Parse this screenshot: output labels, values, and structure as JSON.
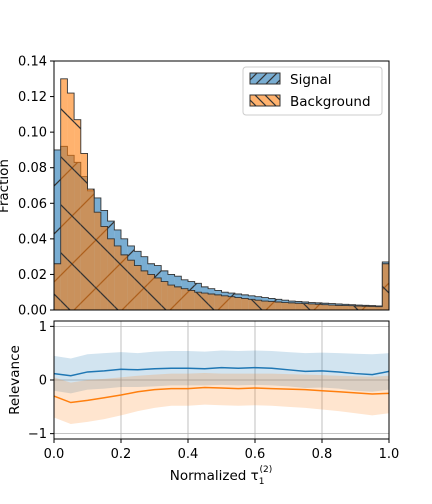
{
  "chart_data": [
    {
      "type": "histogram",
      "ylabel": "Fraction",
      "ylim": [
        0,
        0.14
      ],
      "xlim": [
        0,
        1
      ],
      "yticks": [
        0.0,
        0.02,
        0.04,
        0.06,
        0.08,
        0.1,
        0.12,
        0.14
      ],
      "ytick_labels": [
        "0.00",
        "0.02",
        "0.04",
        "0.06",
        "0.08",
        "0.10",
        "0.12",
        "0.14"
      ],
      "legend_position": "top-right",
      "bins": 50,
      "series": [
        {
          "name": "Signal",
          "color": "#1f77b4",
          "hatch": "forward-slash",
          "values": [
            0.09,
            0.092,
            0.087,
            0.083,
            0.075,
            0.067,
            0.063,
            0.056,
            0.05,
            0.045,
            0.04,
            0.036,
            0.033,
            0.03,
            0.026,
            0.025,
            0.022,
            0.02,
            0.019,
            0.017,
            0.016,
            0.015,
            0.013,
            0.012,
            0.011,
            0.01,
            0.0095,
            0.009,
            0.0085,
            0.008,
            0.0075,
            0.007,
            0.0065,
            0.006,
            0.0055,
            0.005,
            0.0048,
            0.0045,
            0.0042,
            0.004,
            0.0038,
            0.0036,
            0.0034,
            0.0032,
            0.003,
            0.0028,
            0.0026,
            0.0025,
            0.0023,
            0.027
          ]
        },
        {
          "name": "Background",
          "color": "#ff7f0e",
          "hatch": "back-slash",
          "values": [
            0.026,
            0.13,
            0.122,
            0.107,
            0.088,
            0.068,
            0.055,
            0.047,
            0.04,
            0.036,
            0.031,
            0.028,
            0.025,
            0.022,
            0.02,
            0.018,
            0.016,
            0.014,
            0.013,
            0.012,
            0.011,
            0.01,
            0.0095,
            0.009,
            0.0085,
            0.008,
            0.0075,
            0.007,
            0.0065,
            0.006,
            0.0055,
            0.005,
            0.0048,
            0.0045,
            0.0042,
            0.004,
            0.0038,
            0.0036,
            0.0034,
            0.0032,
            0.003,
            0.0028,
            0.0026,
            0.0025,
            0.0024,
            0.0022,
            0.0021,
            0.002,
            0.0019,
            0.026
          ]
        }
      ]
    },
    {
      "type": "line",
      "xlabel": "Normalized τ",
      "xlabel_sub": "1",
      "xlabel_sup": "(2)",
      "ylabel": "Relevance",
      "xlim": [
        0,
        1
      ],
      "ylim": [
        -1.1,
        1.1
      ],
      "xticks": [
        0.0,
        0.2,
        0.4,
        0.6,
        0.8,
        1.0
      ],
      "xtick_labels": [
        "0.0",
        "0.2",
        "0.4",
        "0.6",
        "0.8",
        "1.0"
      ],
      "yticks": [
        -1,
        0,
        1
      ],
      "ytick_labels": [
        "−1",
        "0",
        "1"
      ],
      "grid": true,
      "x": [
        0.0,
        0.05,
        0.1,
        0.15,
        0.2,
        0.25,
        0.3,
        0.35,
        0.4,
        0.45,
        0.5,
        0.55,
        0.6,
        0.65,
        0.7,
        0.75,
        0.8,
        0.85,
        0.9,
        0.95,
        1.0
      ],
      "series": [
        {
          "color": "#1f77b4",
          "mean": [
            0.12,
            0.08,
            0.15,
            0.17,
            0.2,
            0.19,
            0.21,
            0.22,
            0.22,
            0.21,
            0.23,
            0.22,
            0.23,
            0.22,
            0.19,
            0.16,
            0.17,
            0.15,
            0.12,
            0.1,
            0.16
          ],
          "upper": [
            0.45,
            0.4,
            0.48,
            0.5,
            0.52,
            0.5,
            0.53,
            0.54,
            0.54,
            0.53,
            0.55,
            0.54,
            0.55,
            0.54,
            0.52,
            0.5,
            0.51,
            0.5,
            0.49,
            0.48,
            0.5
          ],
          "lower": [
            -0.2,
            -0.25,
            -0.18,
            -0.16,
            -0.13,
            -0.13,
            -0.12,
            -0.1,
            -0.1,
            -0.1,
            -0.09,
            -0.1,
            -0.09,
            -0.1,
            -0.12,
            -0.15,
            -0.14,
            -0.16,
            -0.2,
            -0.22,
            -0.18
          ]
        },
        {
          "color": "#ff7f0e",
          "mean": [
            -0.3,
            -0.42,
            -0.38,
            -0.33,
            -0.28,
            -0.22,
            -0.18,
            -0.16,
            -0.16,
            -0.14,
            -0.15,
            -0.16,
            -0.15,
            -0.16,
            -0.17,
            -0.18,
            -0.2,
            -0.22,
            -0.24,
            -0.26,
            -0.25
          ],
          "upper": [
            0.05,
            -0.05,
            0.0,
            0.02,
            0.05,
            0.08,
            0.1,
            0.12,
            0.12,
            0.13,
            0.12,
            0.12,
            0.12,
            0.12,
            0.11,
            0.1,
            0.09,
            0.08,
            0.07,
            0.06,
            0.08
          ],
          "lower": [
            -0.7,
            -0.82,
            -0.78,
            -0.73,
            -0.66,
            -0.58,
            -0.52,
            -0.48,
            -0.48,
            -0.46,
            -0.47,
            -0.48,
            -0.47,
            -0.48,
            -0.5,
            -0.52,
            -0.55,
            -0.58,
            -0.62,
            -0.66,
            -0.62
          ]
        }
      ]
    }
  ]
}
